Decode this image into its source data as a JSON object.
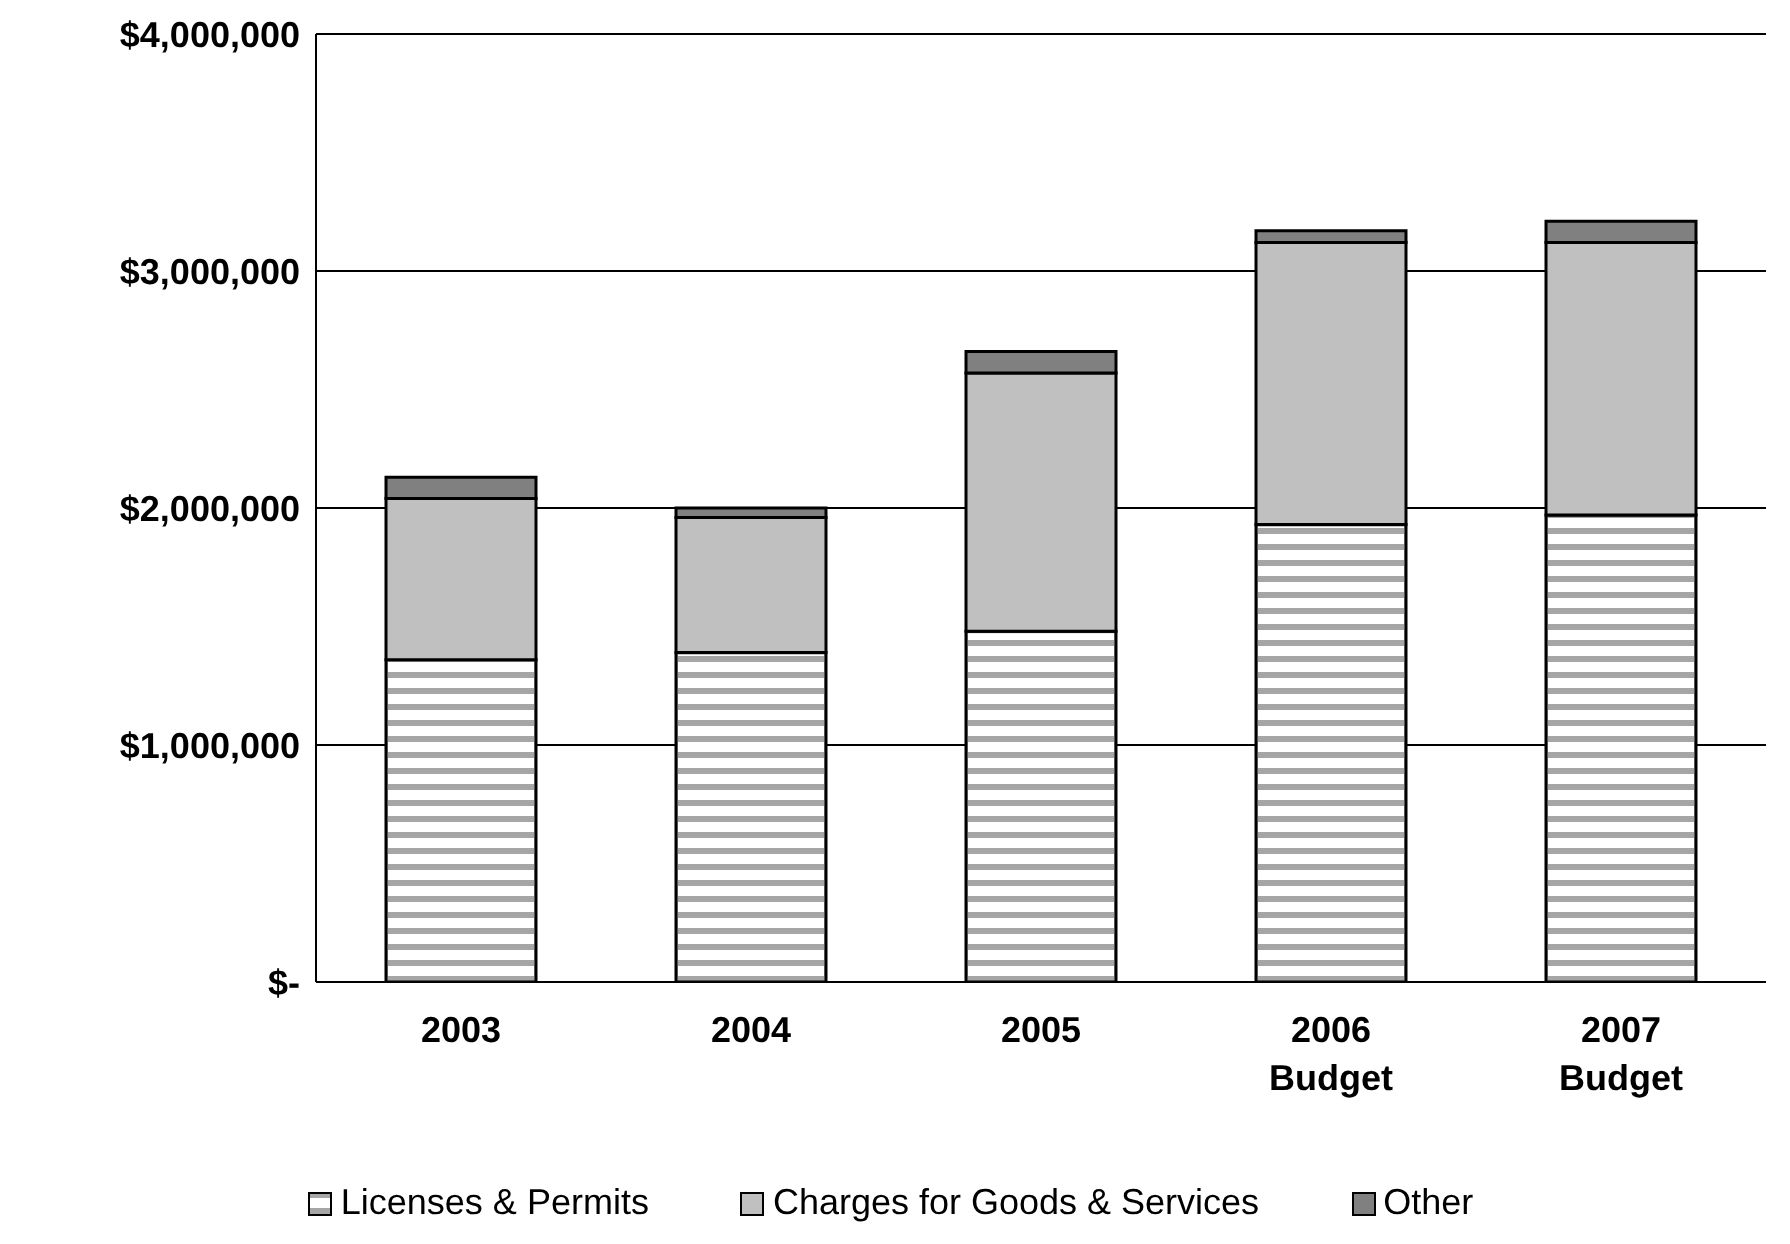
{
  "chart_data": {
    "type": "bar",
    "stacked": true,
    "categories": [
      "2003",
      "2004",
      "2005",
      "2006\nBudget",
      "2007\nBudget"
    ],
    "series": [
      {
        "name": "Licenses & Permits",
        "color": "#a6a6a6",
        "values": [
          1360000,
          1390000,
          1480000,
          1930000,
          1970000
        ]
      },
      {
        "name": "Charges for Goods & Services",
        "color": "#c0c0c0",
        "values": [
          680000,
          570000,
          1090000,
          1190000,
          1150000
        ]
      },
      {
        "name": "Other",
        "color": "#808080",
        "values": [
          90000,
          40000,
          90000,
          50000,
          90000
        ]
      }
    ],
    "ylim": [
      0,
      4000000
    ],
    "yticks": [
      {
        "value": 0,
        "label": "$-"
      },
      {
        "value": 1000000,
        "label": "$1,000,000"
      },
      {
        "value": 2000000,
        "label": "$2,000,000"
      },
      {
        "value": 3000000,
        "label": "$3,000,000"
      },
      {
        "value": 4000000,
        "label": "$4,000,000"
      }
    ],
    "grid": "y",
    "legend": "bottom"
  }
}
